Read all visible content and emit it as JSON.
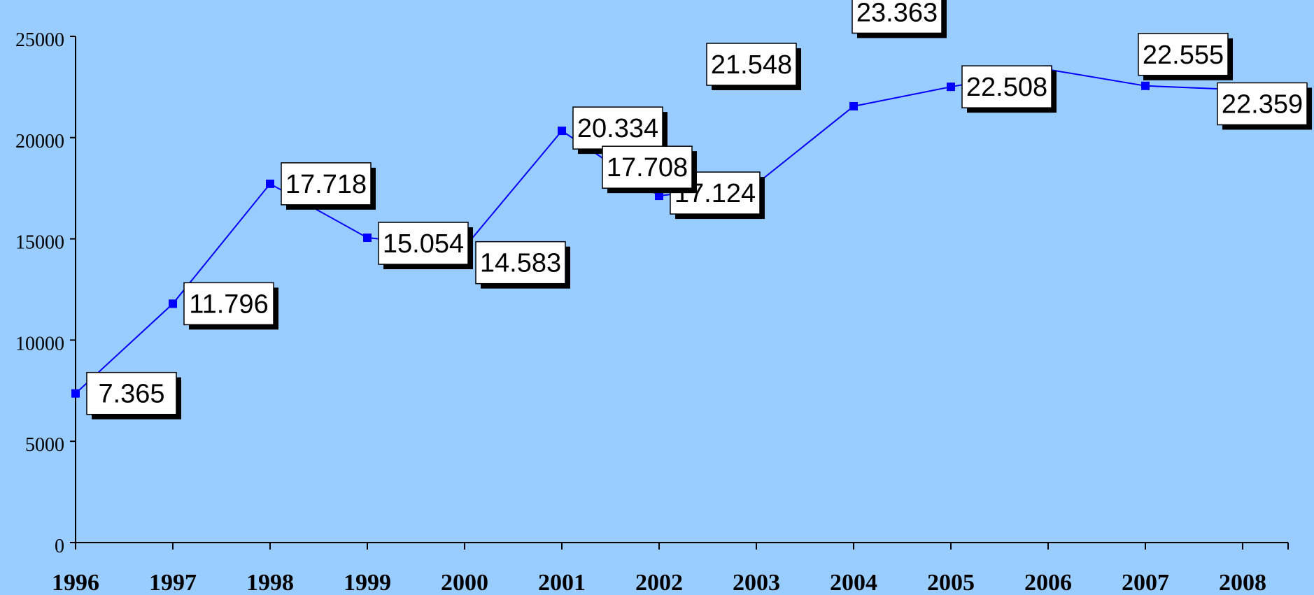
{
  "chart_data": {
    "type": "line",
    "title": "",
    "xlabel": "",
    "ylabel": "",
    "x": [
      "1996",
      "1997",
      "1998",
      "1999",
      "2000",
      "2001",
      "2002",
      "2003",
      "2004",
      "2005",
      "2006",
      "2007",
      "2008"
    ],
    "series": [
      {
        "values": [
          7365,
          11796,
          17718,
          15054,
          14583,
          20334,
          17124,
          17708,
          21548,
          22508,
          23363,
          22555,
          22359
        ],
        "labels": [
          "7.365",
          "11.796",
          "17.718",
          "15.054",
          "14.583",
          "20.334",
          "17.124",
          "17.708",
          "21.548",
          "22.508",
          "23.363",
          "22.555",
          "22.359"
        ]
      }
    ],
    "yticks": [
      "0",
      "5000",
      "10000",
      "15000",
      "20000",
      "25000"
    ],
    "ylim": [
      0,
      25000
    ],
    "grid": false,
    "legend": "none",
    "colors": {
      "background": "#99ccff",
      "line": "#0000ff",
      "marker": "#0000ff",
      "label_box": "#ffffff",
      "label_shadow": "#000000",
      "axis": "#000000"
    }
  }
}
